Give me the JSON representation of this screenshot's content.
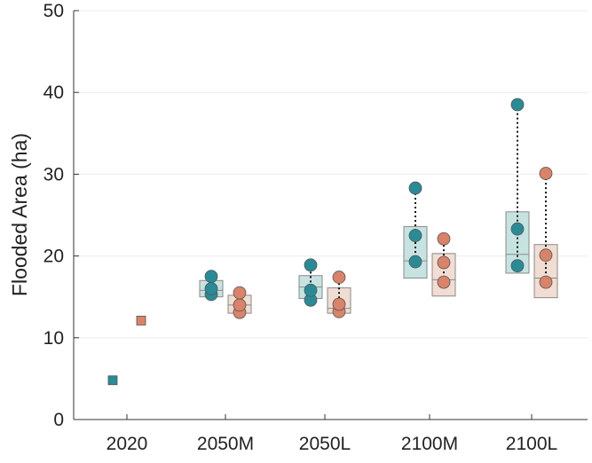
{
  "chart_data": {
    "type": "box-dot",
    "xlabel": "",
    "ylabel": "Flooded Area (ha)",
    "ylim": [
      0,
      50
    ],
    "yticks": [
      0,
      10,
      20,
      30,
      40,
      50
    ],
    "categories": [
      "2020",
      "2050M",
      "2050L",
      "2100M",
      "2100L"
    ],
    "grid": "horizontal",
    "colors": {
      "teal": "#2a8b96",
      "teal_box": "#c6e3e1",
      "orange": "#d8836a",
      "orange_box": "#f1ddd3",
      "box_edge": "#8a8a8a",
      "axis": "#333333"
    },
    "series": [
      {
        "color": "teal",
        "groups": [
          {
            "category": "2020",
            "marker": "square",
            "values": [
              4.8
            ]
          },
          {
            "category": "2050M",
            "marker": "circle",
            "values": [
              15.3,
              16.0,
              17.5
            ],
            "box": [
              15.0,
              15.8,
              17.0
            ]
          },
          {
            "category": "2050L",
            "marker": "circle",
            "values": [
              14.6,
              15.8,
              18.9
            ],
            "box": [
              14.8,
              16.2,
              17.6
            ]
          },
          {
            "category": "2100M",
            "marker": "circle",
            "values": [
              19.3,
              22.5,
              28.3
            ],
            "box": [
              17.3,
              19.4,
              23.6
            ]
          },
          {
            "category": "2100L",
            "marker": "circle",
            "values": [
              18.8,
              23.3,
              38.5
            ],
            "box": [
              17.9,
              20.2,
              25.4
            ]
          }
        ]
      },
      {
        "color": "orange",
        "groups": [
          {
            "category": "2020",
            "marker": "square",
            "values": [
              12.1
            ]
          },
          {
            "category": "2050M",
            "marker": "circle",
            "values": [
              13.1,
              14.0,
              15.5
            ],
            "box": [
              13.0,
              14.0,
              15.2
            ]
          },
          {
            "category": "2050L",
            "marker": "circle",
            "values": [
              13.2,
              14.1,
              17.4
            ],
            "box": [
              13.0,
              13.6,
              16.1
            ]
          },
          {
            "category": "2100M",
            "marker": "circle",
            "values": [
              16.8,
              19.2,
              22.1
            ],
            "box": [
              15.1,
              17.1,
              20.3
            ]
          },
          {
            "category": "2100L",
            "marker": "circle",
            "values": [
              16.8,
              20.1,
              30.1
            ],
            "box": [
              14.9,
              17.3,
              21.4
            ]
          }
        ]
      }
    ]
  }
}
